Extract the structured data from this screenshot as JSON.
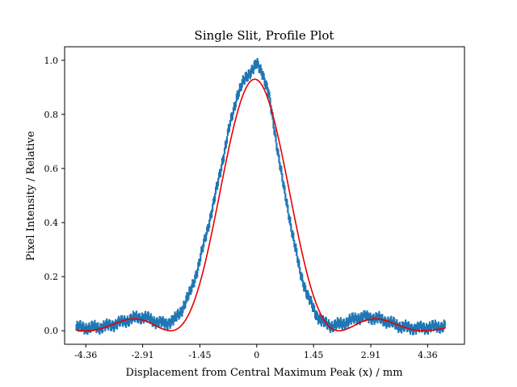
{
  "chart_data": {
    "type": "line",
    "title": "Single Slit, Profile Plot",
    "xlabel": "Displacement from Central Maximum Peak (x) / mm",
    "ylabel": "Pixel Intensity / Relative",
    "xlim": [
      -4.9,
      5.3
    ],
    "ylim": [
      -0.05,
      1.05
    ],
    "xticks": [
      -4.36,
      -2.91,
      -1.45,
      0,
      1.45,
      2.91,
      4.36
    ],
    "xtick_labels": [
      "-4.36",
      "-2.91",
      "-1.45",
      "0",
      "1.45",
      "2.91",
      "4.36"
    ],
    "yticks": [
      0.0,
      0.2,
      0.4,
      0.6,
      0.8,
      1.0
    ],
    "ytick_labels": [
      "0.0",
      "0.2",
      "0.4",
      "0.6",
      "0.8",
      "1.0"
    ],
    "grid": false,
    "legend": "none",
    "series": [
      {
        "kind": "data",
        "color": "#1f77b4",
        "marker": "errorbar",
        "x": [
          -4.6,
          -4.3,
          -4.0,
          -3.7,
          -3.4,
          -3.1,
          -2.9,
          -2.7,
          -2.5,
          -2.3,
          -2.1,
          -1.9,
          -1.7,
          -1.5,
          -1.3,
          -1.1,
          -0.9,
          -0.7,
          -0.5,
          -0.3,
          -0.15,
          0,
          0.15,
          0.3,
          0.5,
          0.7,
          0.9,
          1.1,
          1.3,
          1.5,
          1.7,
          1.9,
          2.1,
          2.3,
          2.5,
          2.7,
          2.9,
          3.1,
          3.3,
          3.5,
          3.7,
          3.9,
          4.1,
          4.3,
          4.6,
          4.8
        ],
        "y": [
          0.012,
          0.01,
          0.013,
          0.022,
          0.035,
          0.047,
          0.05,
          0.042,
          0.03,
          0.028,
          0.04,
          0.08,
          0.14,
          0.23,
          0.35,
          0.47,
          0.61,
          0.75,
          0.87,
          0.93,
          0.96,
          0.985,
          0.955,
          0.88,
          0.7,
          0.52,
          0.37,
          0.22,
          0.13,
          0.065,
          0.03,
          0.018,
          0.022,
          0.032,
          0.045,
          0.052,
          0.05,
          0.045,
          0.035,
          0.024,
          0.015,
          0.011,
          0.01,
          0.012,
          0.014,
          0.017
        ]
      },
      {
        "kind": "fit",
        "color": "#e60000",
        "function": "sinc squared",
        "I0": 0.93,
        "x0": -0.05,
        "first_minimum": 2.15,
        "offset": 0.0
      }
    ]
  }
}
